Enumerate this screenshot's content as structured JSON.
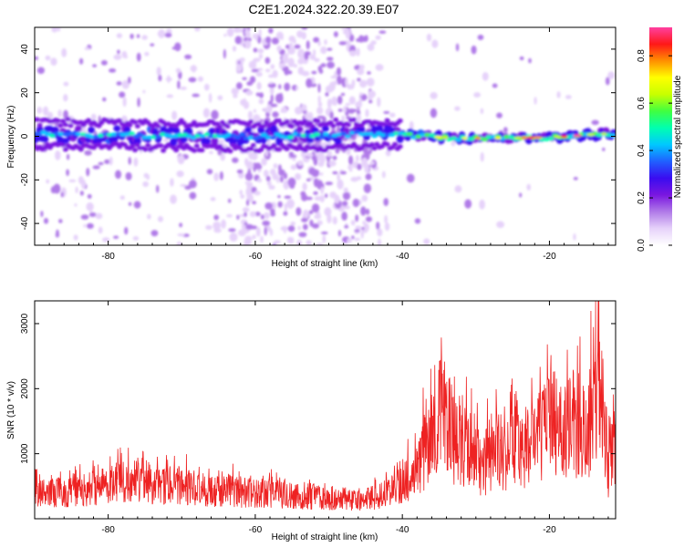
{
  "figure": {
    "title": "C2E1.2024.322.20.39.E07"
  },
  "chart_data": [
    {
      "type": "heatmap",
      "xlabel": "Height of straight line (km)",
      "ylabel": "Frequency (Hz)",
      "xlim": [
        -90,
        -11
      ],
      "ylim": [
        -50,
        50
      ],
      "xticks": [
        -80,
        -60,
        -40,
        -20
      ],
      "yticks": [
        -40,
        -20,
        0,
        20,
        40
      ],
      "colorbar": {
        "label": "Normalized spectral amplitude",
        "range": [
          0,
          0.92
        ],
        "ticks": [
          0.0,
          0.2,
          0.4,
          0.6,
          0.8
        ],
        "tick_labels": [
          "0.0",
          "0.2",
          "0.4",
          "0.6",
          "0.8"
        ],
        "colormap": [
          "#ffffff",
          "#e6d2fa",
          "#b07ae8",
          "#7a16e0",
          "#3a0cf0",
          "#2060ff",
          "#00c8ff",
          "#00ffb0",
          "#40ff40",
          "#c8ff00",
          "#ffff00",
          "#ff9000",
          "#ff1818",
          "#ff3fa0"
        ]
      },
      "band": {
        "description_center_hz": [
          [
            -90,
            1
          ],
          [
            -60,
            0
          ],
          [
            -42,
            1
          ],
          [
            -32,
            -1
          ],
          [
            -20,
            -0.5
          ],
          [
            -11,
            1.5
          ]
        ],
        "max_amplitude_regions_km": [
          [
            -36,
            -11
          ]
        ]
      },
      "grid": false
    },
    {
      "type": "line",
      "xlabel": "Height of straight line (km)",
      "ylabel": "SNR (10 * v/v)",
      "xlim": [
        -90,
        -11
      ],
      "ylim": [
        0,
        3350
      ],
      "xticks": [
        -80,
        -60,
        -40,
        -20
      ],
      "yticks": [
        1000,
        2000,
        3000
      ],
      "series": [
        {
          "color": "#ee2222",
          "x": [
            -90,
            -88,
            -86,
            -84,
            -82,
            -80,
            -78,
            -76,
            -75,
            -74,
            -72,
            -70,
            -68,
            -66,
            -64,
            -62,
            -60,
            -58,
            -56,
            -54,
            -52,
            -50,
            -48,
            -46,
            -44,
            -42,
            -40,
            -38,
            -37,
            -36,
            -35,
            -34,
            -33,
            -32,
            -31,
            -30,
            -29,
            -28,
            -27,
            -26,
            -25,
            -24,
            -23,
            -22,
            -21,
            -20,
            -19,
            -18,
            -17,
            -16,
            -15,
            -14,
            -13.3,
            -13,
            -12,
            -11
          ],
          "y": [
            450,
            500,
            480,
            520,
            560,
            620,
            700,
            720,
            800,
            560,
            600,
            620,
            540,
            500,
            520,
            480,
            460,
            470,
            420,
            410,
            400,
            380,
            360,
            350,
            380,
            480,
            620,
            900,
            1250,
            1600,
            2000,
            1750,
            1350,
            1450,
            1250,
            1100,
            950,
            1200,
            1350,
            1000,
            1700,
            1200,
            1100,
            1500,
            1450,
            1850,
            1650,
            1450,
            1850,
            1700,
            1500,
            2200,
            3000,
            2300,
            900,
            1400
          ]
        }
      ],
      "grid": false
    }
  ]
}
